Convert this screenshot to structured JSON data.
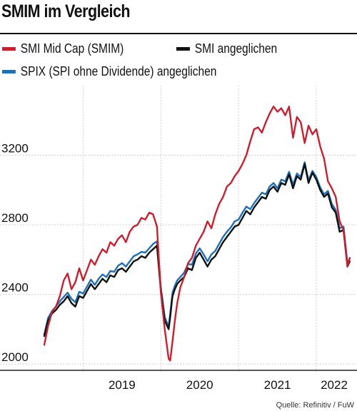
{
  "title": "SMIM im Vergleich",
  "source": "Quelle: Refinitiv / FuW",
  "colors": {
    "smim": "#c8202f",
    "smi": "#111111",
    "spix": "#1f6fb5",
    "grid": "#cfcfcf",
    "axis": "#222222"
  },
  "chart_data": {
    "type": "line",
    "title": "SMIM im Vergleich",
    "xlabel": "",
    "ylabel": "",
    "x_ticks": [
      "2019",
      "2020",
      "2021",
      "2022"
    ],
    "y_ticks": [
      2000,
      2400,
      2800,
      3200
    ],
    "xlim": [
      2018.5,
      2022.45
    ],
    "ylim": [
      1980,
      3600
    ],
    "grid": true,
    "legend_position": "top",
    "series": [
      {
        "name": "SMI Mid Cap (SMIM)",
        "color": "#c8202f",
        "x": [
          2018.5,
          2018.55,
          2018.6,
          2018.65,
          2018.7,
          2018.75,
          2018.8,
          2018.85,
          2018.9,
          2018.95,
          2019.0,
          2019.05,
          2019.1,
          2019.15,
          2019.2,
          2019.25,
          2019.3,
          2019.35,
          2019.4,
          2019.45,
          2019.5,
          2019.55,
          2019.6,
          2019.65,
          2019.7,
          2019.75,
          2019.8,
          2019.85,
          2019.9,
          2019.95,
          2020.0,
          2020.05,
          2020.1,
          2020.12,
          2020.15,
          2020.18,
          2020.21,
          2020.25,
          2020.3,
          2020.35,
          2020.4,
          2020.45,
          2020.5,
          2020.55,
          2020.6,
          2020.65,
          2020.7,
          2020.75,
          2020.8,
          2020.85,
          2020.9,
          2020.95,
          2021.0,
          2021.05,
          2021.1,
          2021.15,
          2021.2,
          2021.25,
          2021.3,
          2021.35,
          2021.4,
          2021.45,
          2021.5,
          2021.55,
          2021.6,
          2021.65,
          2021.7,
          2021.75,
          2021.8,
          2021.85,
          2021.9,
          2021.95,
          2022.0,
          2022.05,
          2022.1,
          2022.15,
          2022.2,
          2022.25,
          2022.3,
          2022.35,
          2022.4,
          2022.43
        ],
        "values": [
          2110,
          2220,
          2300,
          2330,
          2390,
          2480,
          2520,
          2430,
          2470,
          2550,
          2480,
          2540,
          2600,
          2570,
          2620,
          2660,
          2640,
          2700,
          2680,
          2720,
          2740,
          2700,
          2760,
          2790,
          2800,
          2840,
          2830,
          2870,
          2860,
          2790,
          2410,
          2200,
          2030,
          2020,
          2130,
          2250,
          2350,
          2440,
          2500,
          2580,
          2610,
          2680,
          2720,
          2760,
          2820,
          2780,
          2860,
          2920,
          2960,
          3020,
          3040,
          3080,
          3110,
          3150,
          3200,
          3280,
          3350,
          3360,
          3330,
          3390,
          3440,
          3480,
          3450,
          3470,
          3430,
          3480,
          3300,
          3420,
          3390,
          3270,
          3370,
          3320,
          3350,
          3250,
          3180,
          3050,
          3010,
          2960,
          2820,
          2770,
          2560,
          2610
        ]
      },
      {
        "name": "SMI angeglichen",
        "color": "#111111",
        "x": [
          2018.5,
          2018.55,
          2018.6,
          2018.65,
          2018.7,
          2018.75,
          2018.8,
          2018.85,
          2018.9,
          2018.95,
          2019.0,
          2019.05,
          2019.1,
          2019.15,
          2019.2,
          2019.25,
          2019.3,
          2019.35,
          2019.4,
          2019.45,
          2019.5,
          2019.55,
          2019.6,
          2019.65,
          2019.7,
          2019.75,
          2019.8,
          2019.85,
          2019.9,
          2019.95,
          2020.0,
          2020.05,
          2020.1,
          2020.12,
          2020.15,
          2020.18,
          2020.21,
          2020.25,
          2020.3,
          2020.35,
          2020.4,
          2020.45,
          2020.5,
          2020.55,
          2020.6,
          2020.65,
          2020.7,
          2020.75,
          2020.8,
          2020.85,
          2020.9,
          2020.95,
          2021.0,
          2021.05,
          2021.1,
          2021.15,
          2021.2,
          2021.25,
          2021.3,
          2021.35,
          2021.4,
          2021.45,
          2021.5,
          2021.55,
          2021.6,
          2021.65,
          2021.7,
          2021.75,
          2021.8,
          2021.85,
          2021.9,
          2021.95,
          2022.0,
          2022.05,
          2022.1,
          2022.15,
          2022.2,
          2022.25,
          2022.3,
          2022.35,
          2022.4,
          2022.43
        ],
        "values": [
          2160,
          2250,
          2290,
          2310,
          2340,
          2360,
          2390,
          2350,
          2330,
          2390,
          2380,
          2420,
          2460,
          2430,
          2460,
          2490,
          2470,
          2510,
          2500,
          2540,
          2550,
          2530,
          2560,
          2590,
          2600,
          2620,
          2610,
          2640,
          2660,
          2680,
          2420,
          2250,
          2200,
          2270,
          2390,
          2430,
          2460,
          2480,
          2500,
          2550,
          2540,
          2610,
          2640,
          2600,
          2560,
          2600,
          2620,
          2660,
          2700,
          2730,
          2760,
          2790,
          2800,
          2840,
          2880,
          2860,
          2900,
          2930,
          2960,
          2950,
          3000,
          3020,
          2990,
          3040,
          3030,
          3090,
          3010,
          3080,
          3060,
          3150,
          3040,
          3100,
          3060,
          3000,
          2960,
          2980,
          2900,
          2870,
          2760,
          2770,
          2560,
          2590
        ]
      },
      {
        "name": "SPIX (SPI ohne Dividende) angeglichen",
        "color": "#1f6fb5",
        "x": [
          2018.5,
          2018.55,
          2018.6,
          2018.65,
          2018.7,
          2018.75,
          2018.8,
          2018.85,
          2018.9,
          2018.95,
          2019.0,
          2019.05,
          2019.1,
          2019.15,
          2019.2,
          2019.25,
          2019.3,
          2019.35,
          2019.4,
          2019.45,
          2019.5,
          2019.55,
          2019.6,
          2019.65,
          2019.7,
          2019.75,
          2019.8,
          2019.85,
          2019.9,
          2019.95,
          2020.0,
          2020.05,
          2020.1,
          2020.12,
          2020.15,
          2020.18,
          2020.21,
          2020.25,
          2020.3,
          2020.35,
          2020.4,
          2020.45,
          2020.5,
          2020.55,
          2020.6,
          2020.65,
          2020.7,
          2020.75,
          2020.8,
          2020.85,
          2020.9,
          2020.95,
          2021.0,
          2021.05,
          2021.1,
          2021.15,
          2021.2,
          2021.25,
          2021.3,
          2021.35,
          2021.4,
          2021.45,
          2021.5,
          2021.55,
          2021.6,
          2021.65,
          2021.7,
          2021.75,
          2021.8,
          2021.85,
          2021.9,
          2021.95,
          2022.0,
          2022.05,
          2022.1,
          2022.15,
          2022.2,
          2022.25,
          2022.3,
          2022.35,
          2022.4,
          2022.43
        ],
        "values": [
          2170,
          2265,
          2305,
          2330,
          2360,
          2385,
          2410,
          2375,
          2355,
          2415,
          2405,
          2445,
          2485,
          2455,
          2490,
          2515,
          2500,
          2535,
          2530,
          2565,
          2580,
          2560,
          2590,
          2620,
          2630,
          2645,
          2640,
          2665,
          2690,
          2705,
          2440,
          2270,
          2215,
          2290,
          2410,
          2450,
          2480,
          2500,
          2525,
          2575,
          2570,
          2635,
          2665,
          2630,
          2590,
          2630,
          2650,
          2690,
          2730,
          2760,
          2785,
          2820,
          2830,
          2870,
          2905,
          2890,
          2925,
          2955,
          2985,
          2975,
          3020,
          3040,
          3010,
          3060,
          3050,
          3105,
          3030,
          3095,
          3075,
          3160,
          3055,
          3110,
          3075,
          3015,
          2975,
          2995,
          2920,
          2885,
          2780,
          2790,
          2580,
          2605
        ]
      }
    ]
  }
}
